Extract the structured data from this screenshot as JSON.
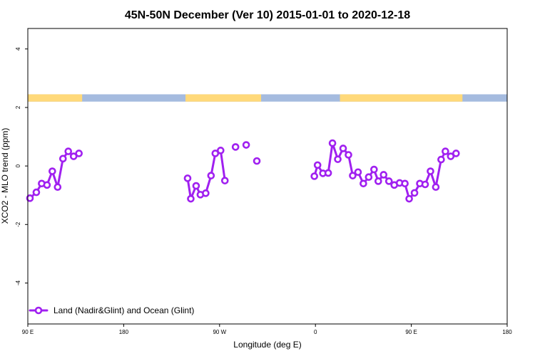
{
  "chart_data": {
    "type": "line",
    "title": "45N-50N December (Ver 10)   2015-01-01 to 2020-12-18",
    "xlabel": "Longitude (deg E)",
    "ylabel": "XCO2 - MLO trend (ppm)",
    "xlim": [
      90,
      540
    ],
    "ylim": [
      -5.4,
      4.7
    ],
    "x_ticks": [
      {
        "value": 90,
        "label": "90 E"
      },
      {
        "value": 180,
        "label": "180"
      },
      {
        "value": 270,
        "label": "90 W"
      },
      {
        "value": 360,
        "label": "0"
      },
      {
        "value": 450,
        "label": "90 E"
      },
      {
        "value": 540,
        "label": "180"
      }
    ],
    "y_ticks": [
      {
        "value": -4,
        "label": "-4"
      },
      {
        "value": -2,
        "label": "-2"
      },
      {
        "value": 0,
        "label": "0"
      },
      {
        "value": 2,
        "label": "2"
      },
      {
        "value": 4,
        "label": "4"
      }
    ],
    "surface_strip": {
      "y_range": [
        2.2,
        2.45
      ],
      "land_color": "#FFD97A",
      "ocean_color": "#A5BBDF",
      "land_segments": [
        [
          90,
          141
        ],
        [
          238,
          309
        ],
        [
          383,
          498
        ]
      ]
    },
    "legend": {
      "position": "bottom-left"
    },
    "series": [
      {
        "name": "Land (Nadir&Glint) and Ocean (Glint)",
        "color": "#A020F0",
        "segments": [
          [
            [
              92,
              -1.1
            ],
            [
              98,
              -0.9
            ],
            [
              103,
              -0.6
            ],
            [
              108,
              -0.65
            ],
            [
              113,
              -0.18
            ],
            [
              118,
              -0.72
            ],
            [
              123,
              0.25
            ],
            [
              128,
              0.5
            ],
            [
              133,
              0.33
            ],
            [
              138,
              0.43
            ]
          ],
          [
            [
              240,
              -0.42
            ],
            [
              243,
              -1.12
            ],
            [
              248,
              -0.68
            ],
            [
              252,
              -0.98
            ],
            [
              257,
              -0.93
            ],
            [
              262,
              -0.33
            ],
            [
              266,
              0.43
            ],
            [
              271,
              0.53
            ],
            [
              275,
              -0.5
            ]
          ],
          [
            [
              285,
              0.65
            ]
          ],
          [
            [
              295,
              0.72
            ]
          ],
          [
            [
              305,
              0.17
            ]
          ],
          [
            [
              359,
              -0.35
            ],
            [
              362,
              0.03
            ],
            [
              367,
              -0.25
            ],
            [
              372,
              -0.24
            ],
            [
              376,
              0.78
            ],
            [
              381,
              0.23
            ],
            [
              386,
              0.6
            ],
            [
              391,
              0.38
            ],
            [
              395,
              -0.33
            ],
            [
              400,
              -0.21
            ],
            [
              405,
              -0.6
            ],
            [
              410,
              -0.38
            ],
            [
              415,
              -0.12
            ],
            [
              419,
              -0.52
            ],
            [
              424,
              -0.3
            ],
            [
              429,
              -0.52
            ],
            [
              434,
              -0.65
            ],
            [
              439,
              -0.58
            ],
            [
              444,
              -0.6
            ],
            [
              448,
              -1.12
            ],
            [
              453,
              -0.92
            ],
            [
              458,
              -0.6
            ],
            [
              463,
              -0.63
            ],
            [
              468,
              -0.18
            ],
            [
              473,
              -0.72
            ],
            [
              478,
              0.22
            ],
            [
              482,
              0.5
            ],
            [
              487,
              0.33
            ],
            [
              492,
              0.43
            ]
          ]
        ]
      }
    ]
  }
}
